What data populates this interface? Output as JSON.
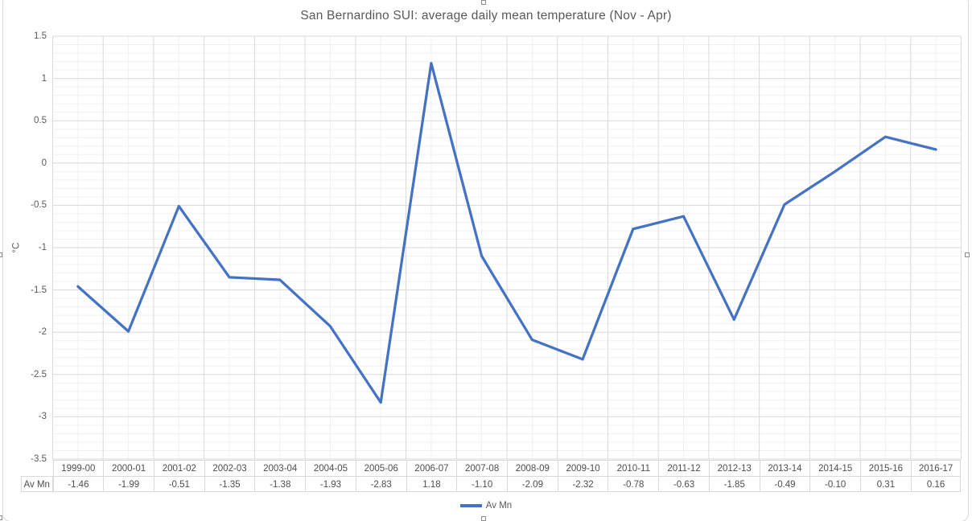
{
  "chart_data": {
    "type": "line",
    "title": "San Bernardino SUI: average daily mean temperature (Nov - Apr)",
    "xlabel": "",
    "ylabel": "°C",
    "categories": [
      "1999-00",
      "2000-01",
      "2001-02",
      "2002-03",
      "2003-04",
      "2004-05",
      "2005-06",
      "2006-07",
      "2007-08",
      "2008-09",
      "2009-10",
      "2010-11",
      "2011-12",
      "2012-13",
      "2013-14",
      "2014-15",
      "2015-16",
      "2016-17"
    ],
    "series": [
      {
        "name": "Av Mn",
        "color": "#4472C4",
        "values": [
          -1.46,
          -1.99,
          -0.51,
          -1.35,
          -1.38,
          -1.93,
          -2.83,
          1.18,
          -1.1,
          -2.09,
          -2.32,
          -0.78,
          -0.63,
          -1.85,
          -0.49,
          -0.1,
          0.31,
          0.16
        ]
      }
    ],
    "value_labels": [
      "-1.46",
      "-1.99",
      "-0.51",
      "-1.35",
      "-1.38",
      "-1.93",
      "-2.83",
      "1.18",
      "-1.10",
      "-2.09",
      "-2.32",
      "-0.78",
      "-0.63",
      "-1.85",
      "-0.49",
      "-0.10",
      "0.31",
      "0.16"
    ],
    "row_header": "Av Mn",
    "ylim": [
      -3.5,
      1.5
    ],
    "y_major_unit": 0.5,
    "y_minor_unit": 0.1,
    "ytick_labels": [
      "1.5",
      "1",
      "0.5",
      "0",
      "-0.5",
      "-1",
      "-1.5",
      "-2",
      "-2.5",
      "-3",
      "-3.5"
    ],
    "legend_position": "bottom",
    "grid": "major and minor gridlines on both axes",
    "data_table_shown": true
  },
  "colors": {
    "series_line": "#4472C4",
    "grid_major": "#D9D9D9",
    "grid_minor": "#F0F0F0",
    "axis_line": "#D9D9D9",
    "text": "#595959",
    "table_text": "#4d4d4d",
    "frame_border": "#D9D9D9",
    "handle_border": "#8C8C8C",
    "background": "#FFFFFF"
  }
}
